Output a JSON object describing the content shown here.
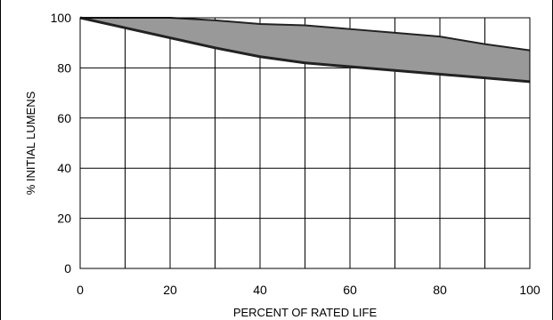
{
  "chart_data": {
    "type": "area",
    "title": "",
    "xlabel": "PERCENT OF RATED LIFE",
    "ylabel": "% INITIAL LUMENS",
    "xlim": [
      0,
      100
    ],
    "ylim": [
      0,
      100
    ],
    "x_ticks": [
      0,
      20,
      40,
      60,
      80,
      100
    ],
    "y_ticks": [
      0,
      20,
      40,
      60,
      80,
      100
    ],
    "x_tick_labels": [
      "0",
      "20",
      "40",
      "60",
      "80",
      "100"
    ],
    "y_tick_labels": [
      "0",
      "20",
      "40",
      "60",
      "80",
      "100"
    ],
    "grid": true,
    "grid_x_step": 10,
    "grid_y_step": 20,
    "band_fill_color": "#999999",
    "series": [
      {
        "x": [
          0,
          10,
          20,
          30,
          40,
          50,
          60,
          70,
          80,
          90,
          100
        ],
        "values": [
          100,
          100,
          100,
          99,
          97.5,
          97,
          95.5,
          94,
          92.5,
          89.5,
          87
        ]
      },
      {
        "x": [
          0,
          10,
          20,
          30,
          40,
          50,
          60,
          70,
          80,
          90,
          100
        ],
        "values": [
          100,
          96,
          92,
          88,
          84.5,
          82,
          80.5,
          79,
          77.5,
          76,
          74.5
        ]
      }
    ]
  }
}
